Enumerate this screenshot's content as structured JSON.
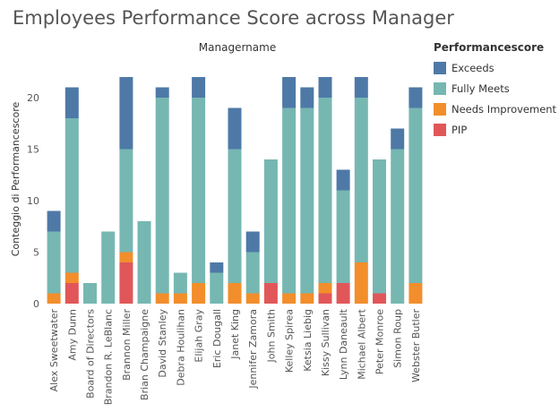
{
  "page": {
    "title": "Employees Performance Score across Manager",
    "column_header": "Managername"
  },
  "legend": {
    "title": "Performancescore",
    "items": [
      {
        "label": "Exceeds",
        "color": "#4e79a7"
      },
      {
        "label": "Fully Meets",
        "color": "#76b7b2"
      },
      {
        "label": "Needs Improvement",
        "color": "#f28e2b"
      },
      {
        "label": "PIP",
        "color": "#e15759"
      }
    ]
  },
  "chart_data": {
    "type": "bar",
    "stacked": true,
    "title": "Employees Performance Score across Manager",
    "xlabel": "Managername",
    "ylabel": "Conteggio di Performancescore",
    "ylim": [
      0,
      22
    ],
    "yticks": [
      0,
      5,
      10,
      15,
      20
    ],
    "grid": false,
    "legend_position": "right",
    "categories": [
      "Alex Sweetwater",
      "Amy Dunn",
      "Board of Directors",
      "Brandon R. LeBlanc",
      "Brannon Miller",
      "Brian Champaigne",
      "David Stanley",
      "Debra Houlihan",
      "Elijah Gray",
      "Eric Dougall",
      "Janet King",
      "Jennifer Zamora",
      "John Smith",
      "Kelley Spirea",
      "Ketsia Liebig",
      "Kissy Sullivan",
      "Lynn Daneault",
      "Michael Albert",
      "Peter Monroe",
      "Simon Roup",
      "Webster Butler"
    ],
    "series": [
      {
        "name": "PIP",
        "color": "#e15759",
        "values": [
          0,
          2,
          0,
          0,
          4,
          0,
          0,
          0,
          0,
          0,
          0,
          0,
          2,
          0,
          0,
          1,
          2,
          0,
          1,
          0,
          0
        ]
      },
      {
        "name": "Needs Improvement",
        "color": "#f28e2b",
        "values": [
          1,
          1,
          0,
          0,
          1,
          0,
          1,
          1,
          2,
          0,
          2,
          1,
          0,
          1,
          1,
          1,
          0,
          4,
          0,
          0,
          2
        ]
      },
      {
        "name": "Fully Meets",
        "color": "#76b7b2",
        "values": [
          6,
          15,
          2,
          7,
          10,
          8,
          19,
          2,
          18,
          3,
          13,
          4,
          12,
          18,
          18,
          18,
          9,
          16,
          13,
          15,
          17
        ]
      },
      {
        "name": "Exceeds",
        "color": "#4e79a7",
        "values": [
          2,
          3,
          0,
          0,
          7,
          0,
          1,
          0,
          2,
          1,
          4,
          2,
          0,
          3,
          2,
          2,
          2,
          2,
          0,
          2,
          2
        ]
      }
    ]
  }
}
